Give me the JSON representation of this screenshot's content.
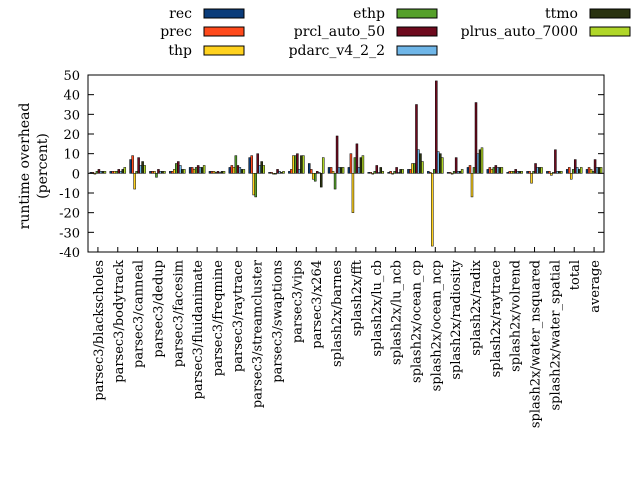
{
  "chart_data": {
    "type": "bar",
    "title": "",
    "xlabel": "",
    "ylabel": "runtime overhead (percent)",
    "ylabel_lines": [
      "runtime overhead",
      "(percent)"
    ],
    "ylim": [
      -40,
      50
    ],
    "yticks": [
      -40,
      -30,
      -20,
      -10,
      0,
      10,
      20,
      30,
      40,
      50
    ],
    "grid": false,
    "legend_position": "top",
    "categories": [
      "parsec3/blackscholes",
      "parsec3/bodytrack",
      "parsec3/canneal",
      "parsec3/dedup",
      "parsec3/facesim",
      "parsec3/fluidanimate",
      "parsec3/freqmine",
      "parsec3/raytrace",
      "parsec3/streamcluster",
      "parsec3/swaptions",
      "parsec3/vips",
      "parsec3/x264",
      "splash2x/barnes",
      "splash2x/fft",
      "splash2x/lu_cb",
      "splash2x/lu_ncb",
      "splash2x/ocean_cp",
      "splash2x/ocean_ncp",
      "splash2x/radiosity",
      "splash2x/radix",
      "splash2x/raytrace",
      "splash2x/volrend",
      "splash2x/water_nsquared",
      "splash2x/water_spatial",
      "total",
      "average"
    ],
    "series": [
      {
        "name": "rec",
        "color": "#0a3c7a",
        "values": [
          0.5,
          1,
          7,
          1,
          1,
          3,
          1,
          3,
          8,
          0.5,
          1,
          5,
          3,
          3,
          0.5,
          0.5,
          2,
          1,
          0.5,
          3,
          2,
          0.5,
          1,
          1,
          2,
          2
        ]
      },
      {
        "name": "prec",
        "color": "#ff4a1c",
        "values": [
          0.5,
          1,
          9,
          1,
          1,
          3,
          1,
          4,
          9,
          0.5,
          2,
          2,
          3,
          10,
          0.5,
          1,
          2,
          0.5,
          0.5,
          4,
          3,
          1,
          1,
          1,
          3,
          3
        ]
      },
      {
        "name": "thp",
        "color": "#ffd21f",
        "values": [
          0,
          1,
          -8,
          1,
          2,
          2,
          1,
          3,
          -11,
          0,
          9,
          -3,
          1,
          -20,
          0,
          0,
          5,
          -37,
          0,
          -12,
          2,
          1,
          -5,
          -1,
          -3,
          2
        ]
      },
      {
        "name": "ethp",
        "color": "#55a02a",
        "values": [
          1,
          1,
          1,
          -2,
          5,
          3,
          0.5,
          9,
          -12,
          0,
          9,
          -4,
          -8,
          8,
          1,
          1,
          5,
          2,
          1,
          3,
          3,
          1,
          1,
          0.5,
          2,
          1
        ]
      },
      {
        "name": "prcl_auto_50",
        "color": "#6e0a1e",
        "values": [
          2,
          2,
          8,
          2,
          6,
          4,
          1,
          4,
          10,
          2,
          10,
          1,
          19,
          15,
          4,
          3,
          35,
          47,
          8,
          36,
          4,
          2,
          5,
          12,
          7,
          7
        ]
      },
      {
        "name": "pdarc_v4_2_2",
        "color": "#6fb6e8",
        "values": [
          1,
          1,
          4,
          1,
          4,
          3,
          0.5,
          3,
          4,
          1,
          2,
          0.5,
          3,
          3,
          0.5,
          0.5,
          12,
          11,
          1,
          10,
          3,
          1,
          3,
          1,
          3,
          3
        ]
      },
      {
        "name": "ttmo",
        "color": "#2a3310",
        "values": [
          1,
          2,
          6,
          1,
          2,
          3,
          1,
          2,
          6,
          0.5,
          9,
          -7,
          3,
          8,
          3,
          2,
          10,
          10,
          1,
          12,
          3,
          1,
          3,
          1,
          2,
          3
        ]
      },
      {
        "name": "plrus_auto_7000",
        "color": "#b0d628",
        "values": [
          1,
          3,
          4,
          1,
          2,
          4,
          1,
          2,
          4,
          1,
          9,
          8,
          3,
          9,
          1,
          2,
          6,
          8,
          2,
          13,
          3,
          1,
          3,
          1,
          3,
          3
        ]
      }
    ]
  }
}
